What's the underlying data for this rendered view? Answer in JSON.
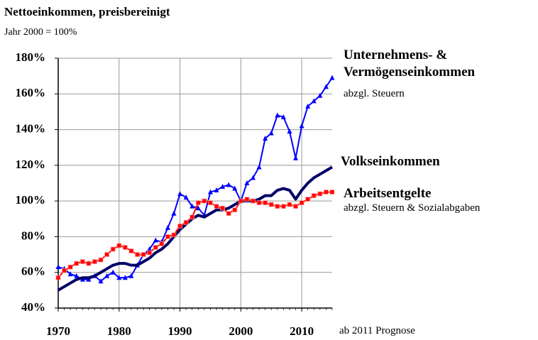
{
  "chart_data": {
    "type": "line",
    "title": "Nettoeinkommen, preisbereinigt",
    "subtitle": "Jahr 2000 = 100%",
    "x": [
      1970,
      1971,
      1972,
      1973,
      1974,
      1975,
      1976,
      1977,
      1978,
      1979,
      1980,
      1981,
      1982,
      1983,
      1984,
      1985,
      1986,
      1987,
      1988,
      1989,
      1990,
      1991,
      1992,
      1993,
      1994,
      1995,
      1996,
      1997,
      1998,
      1999,
      2000,
      2001,
      2002,
      2003,
      2004,
      2005,
      2006,
      2007,
      2008,
      2009,
      2010,
      2011,
      2012,
      2013,
      2014,
      2015
    ],
    "series": [
      {
        "name": "Unternehmens- & Vermögenseinkommen",
        "color": "#0000ff",
        "marker": "triangle",
        "values": [
          63,
          62,
          59,
          58,
          56,
          56,
          58,
          55,
          58,
          60,
          57,
          57,
          58,
          64,
          70,
          73,
          78,
          77,
          85,
          93,
          104,
          102,
          97,
          96,
          92,
          105,
          106,
          108,
          109,
          107,
          100,
          110,
          113,
          119,
          135,
          138,
          148,
          147,
          139,
          124,
          142,
          153,
          156,
          159,
          164,
          169
        ]
      },
      {
        "name": "Volkseinkommen",
        "color": "#000066",
        "marker": "none",
        "values": [
          50,
          52,
          54,
          56,
          57,
          57,
          58,
          60,
          62,
          64,
          65,
          65,
          64,
          64,
          66,
          68,
          71,
          73,
          76,
          80,
          84,
          87,
          90,
          92,
          91,
          93,
          95,
          95,
          96,
          98,
          100,
          100,
          100,
          101,
          103,
          103,
          106,
          107,
          106,
          101,
          106,
          110,
          113,
          115,
          117,
          119
        ]
      },
      {
        "name": "Arbeitsentgelte",
        "color": "#ff0000",
        "marker": "square",
        "values": [
          57,
          61,
          63,
          65,
          66,
          65,
          66,
          67,
          70,
          73,
          75,
          74,
          72,
          70,
          70,
          71,
          74,
          76,
          80,
          81,
          86,
          88,
          91,
          99,
          100,
          99,
          97,
          96,
          93,
          95,
          100,
          101,
          100,
          99,
          99,
          98,
          97,
          97,
          98,
          97,
          99,
          101,
          103,
          104,
          105,
          105
        ]
      }
    ],
    "annotations": [
      "abzgl. Steuern",
      "abzgl. Steuern & Sozialabgaben",
      "ab 2011 Prognose"
    ],
    "xlim": [
      1970,
      2015
    ],
    "xticks": [
      1970,
      1980,
      1990,
      2000,
      2010
    ],
    "ylim": [
      40,
      180
    ],
    "yticks": [
      {
        "value": 40,
        "label": "40%"
      },
      {
        "value": 60,
        "label": "60%"
      },
      {
        "value": 80,
        "label": "80%"
      },
      {
        "value": 100,
        "label": "100%"
      },
      {
        "value": 120,
        "label": "120%"
      },
      {
        "value": 140,
        "label": "140%"
      },
      {
        "value": 160,
        "label": "160%"
      },
      {
        "value": 180,
        "label": "180%"
      }
    ],
    "grid": true
  }
}
